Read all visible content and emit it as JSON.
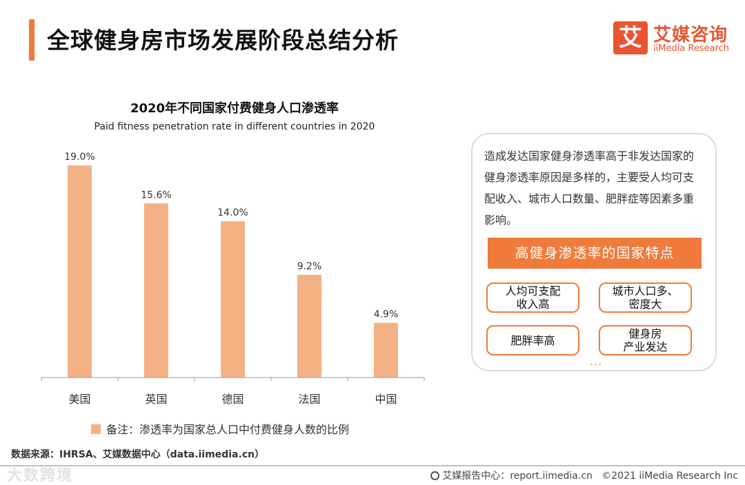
{
  "header": {
    "title": "全球健身房市场发展阶段总结分析",
    "logo_mark": "艾",
    "logo_cn": "艾媒咨询",
    "logo_en": "iiMedia Research"
  },
  "chart_data": {
    "type": "bar",
    "title": "2020年不同国家付费健身人口渗透率",
    "subtitle": "Paid fitness penetration rate in different countries in 2020",
    "categories": [
      "美国",
      "英国",
      "德国",
      "法国",
      "中国"
    ],
    "values": [
      19.0,
      15.6,
      14.0,
      9.2,
      4.9
    ],
    "labels": [
      "19.0%",
      "15.6%",
      "14.0%",
      "9.2%",
      "4.9%"
    ],
    "unit": "%",
    "ylim": [
      0,
      20
    ],
    "xlabel": "",
    "ylabel": "",
    "grid": false,
    "bar_color": "#f4b183"
  },
  "note": "备注：渗透率为国家总人口中付费健身人数的比例",
  "panel": {
    "text": "造成发达国家健身渗透率高于非发达国家的健身渗透率原因是多样的，主要受人均可支配收入、城市人口数量、肥胖症等因素多重影响。",
    "header": "高健身渗透率的国家特点",
    "features": [
      [
        "人均可支配",
        "收入高"
      ],
      [
        "城市人口多、",
        "密度大"
      ],
      [
        "肥胖率高"
      ],
      [
        "健身房",
        "产业发达"
      ]
    ],
    "ellipsis": "..."
  },
  "footer": {
    "source": "数据来源：IHRSA、艾媒数据中心（data.iimedia.cn）",
    "report": "艾媒报告中心：report.iimedia.cn",
    "copyright": "©2021  iiMedia Research  Inc",
    "watermark": "大数跨境"
  },
  "colors": {
    "accent": "#ef7a3a",
    "bar": "#f4b183",
    "logo": "#e8542f"
  }
}
